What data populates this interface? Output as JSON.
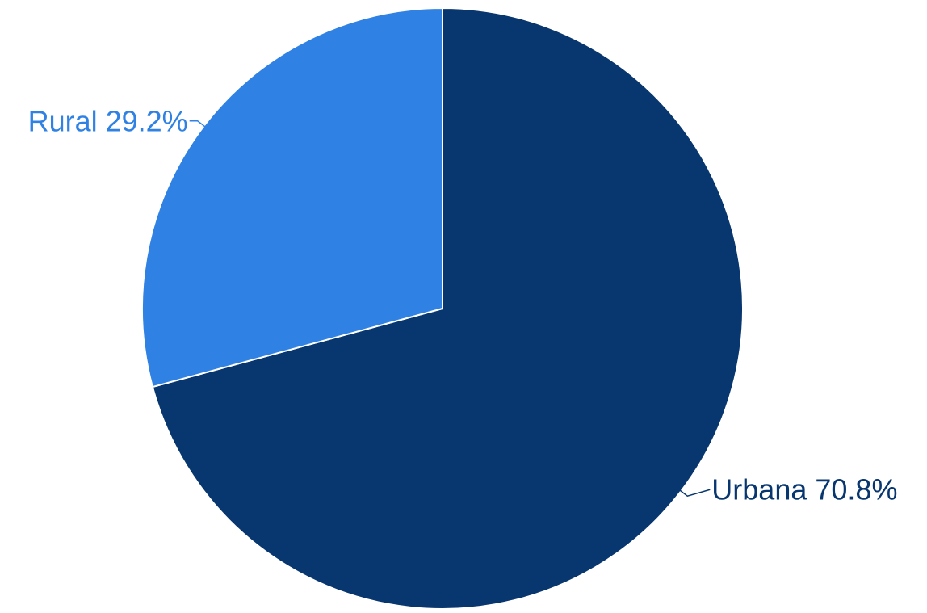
{
  "chart_data": {
    "type": "pie",
    "title": "",
    "slices": [
      {
        "label": "Urbana",
        "value": 70.8,
        "value_label": "70.8%",
        "color": "#08366f"
      },
      {
        "label": "Rural",
        "value": 29.2,
        "value_label": "29.2%",
        "color": "#2f82e3"
      }
    ],
    "start_angle": "12 o'clock",
    "direction": "clockwise",
    "legend": "none",
    "slice_border_color": "#ffffff"
  }
}
